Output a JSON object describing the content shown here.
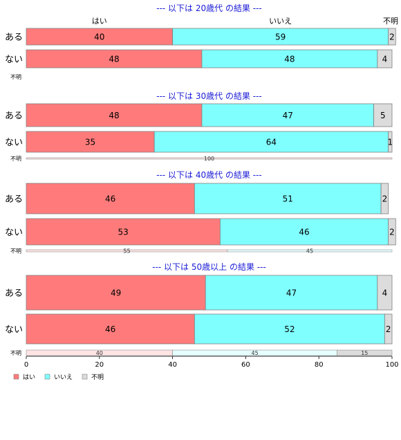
{
  "colors": {
    "hai": "#ff7b7b",
    "iie": "#80ffff",
    "fumei": "#dcdcdc",
    "title": "#1a1ad6",
    "stroke": "#7f7f7f"
  },
  "category_headers": [
    "はい",
    "いいえ",
    "不明"
  ],
  "chart_data": {
    "type": "bar",
    "orientation": "horizontal-stacked",
    "xlim": [
      0,
      100
    ],
    "x_ticks": [
      0,
      20,
      40,
      60,
      80,
      100
    ],
    "legend": {
      "placement": "bottom-left",
      "entries": [
        "はい",
        "いいえ",
        "不明"
      ]
    },
    "panels": [
      {
        "title": "--- 以下は 20歳代 の結果 ---",
        "rows": [
          {
            "label": "ある",
            "values": [
              40,
              59,
              2
            ]
          },
          {
            "label": "ない",
            "values": [
              48,
              48,
              4
            ]
          }
        ],
        "unknown_row": {
          "label": "不明",
          "values": []
        }
      },
      {
        "title": "--- 以下は 30歳代 の結果 ---",
        "rows": [
          {
            "label": "ある",
            "values": [
              48,
              47,
              5
            ]
          },
          {
            "label": "ない",
            "values": [
              35,
              64,
              1
            ]
          }
        ],
        "unknown_row": {
          "label": "不明",
          "values": [
            100,
            0,
            0
          ]
        }
      },
      {
        "title": "--- 以下は 40歳代 の結果 ---",
        "rows": [
          {
            "label": "ある",
            "values": [
              46,
              51,
              2
            ]
          },
          {
            "label": "ない",
            "values": [
              53,
              46,
              2
            ]
          }
        ],
        "unknown_row": {
          "label": "不明",
          "values": [
            55,
            45,
            0
          ]
        }
      },
      {
        "title": "--- 以下は 50歳以上 の結果 ---",
        "rows": [
          {
            "label": "ある",
            "values": [
              49,
              47,
              4
            ]
          },
          {
            "label": "ない",
            "values": [
              46,
              52,
              2
            ]
          }
        ],
        "unknown_row": {
          "label": "不明",
          "values": [
            40,
            45,
            15
          ]
        }
      }
    ]
  }
}
